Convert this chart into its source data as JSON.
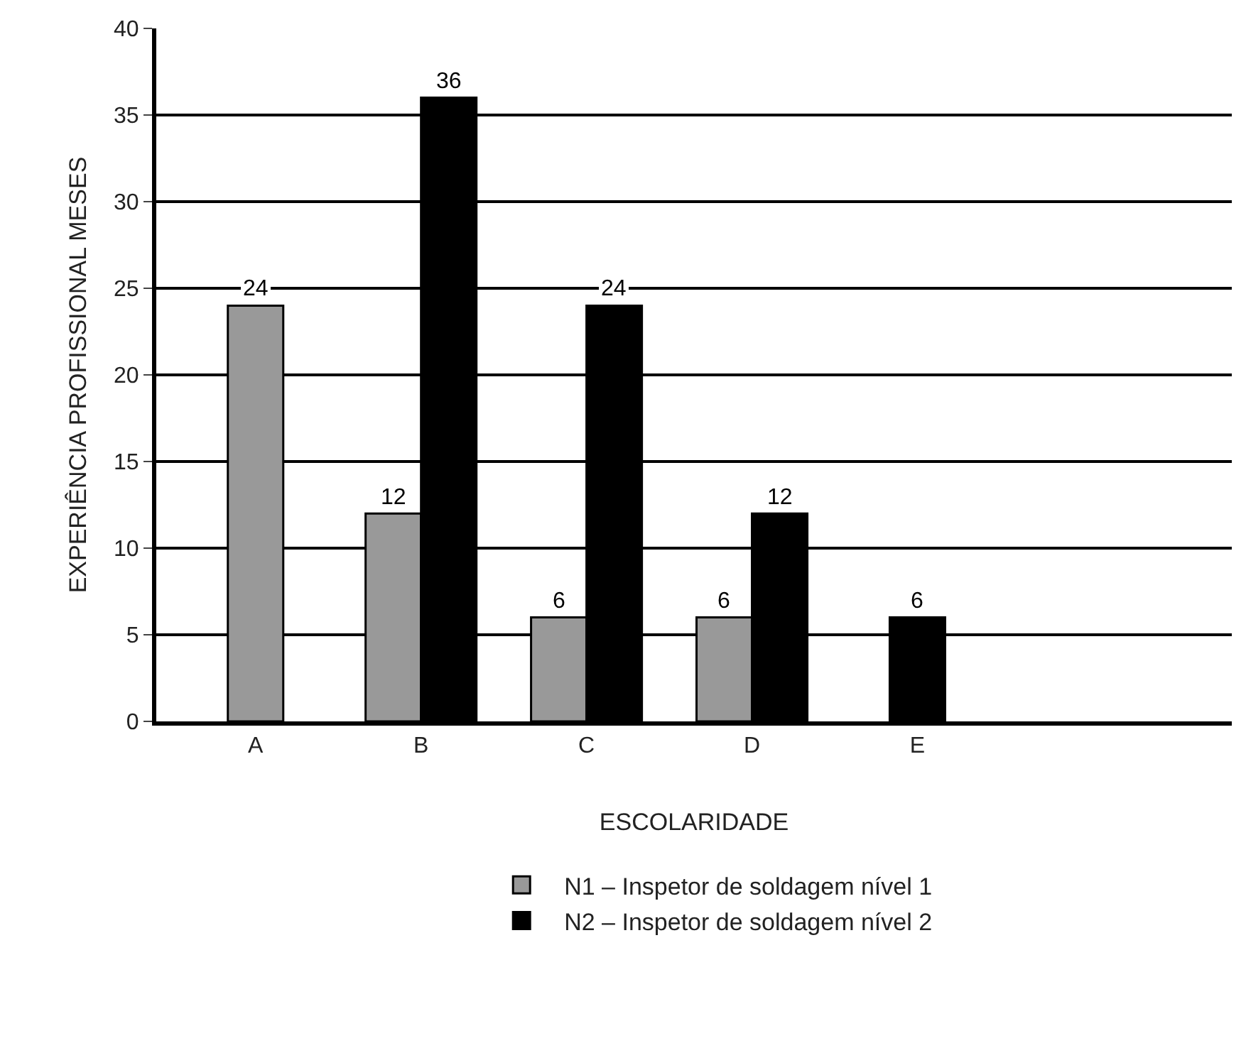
{
  "chart_data": {
    "type": "bar",
    "xlabel": "ESCOLARIDADE",
    "ylabel": "EXPERIÊNCIA PROFISSIONAL MESES",
    "categories": [
      "A",
      "B",
      "C",
      "D",
      "E"
    ],
    "series": [
      {
        "name": "N1 – Inspetor de soldagem nível 1",
        "color": "#999999",
        "values": [
          24,
          12,
          6,
          6,
          null
        ]
      },
      {
        "name": "N2 – Inspetor de soldagem nível 2",
        "color": "#000000",
        "values": [
          null,
          36,
          24,
          12,
          6
        ]
      }
    ],
    "ylim": [
      0,
      40
    ],
    "yticks": [
      0,
      5,
      10,
      15,
      20,
      25,
      30,
      35,
      40
    ],
    "grid": "y",
    "legend": "bottom",
    "data_labels": true
  }
}
